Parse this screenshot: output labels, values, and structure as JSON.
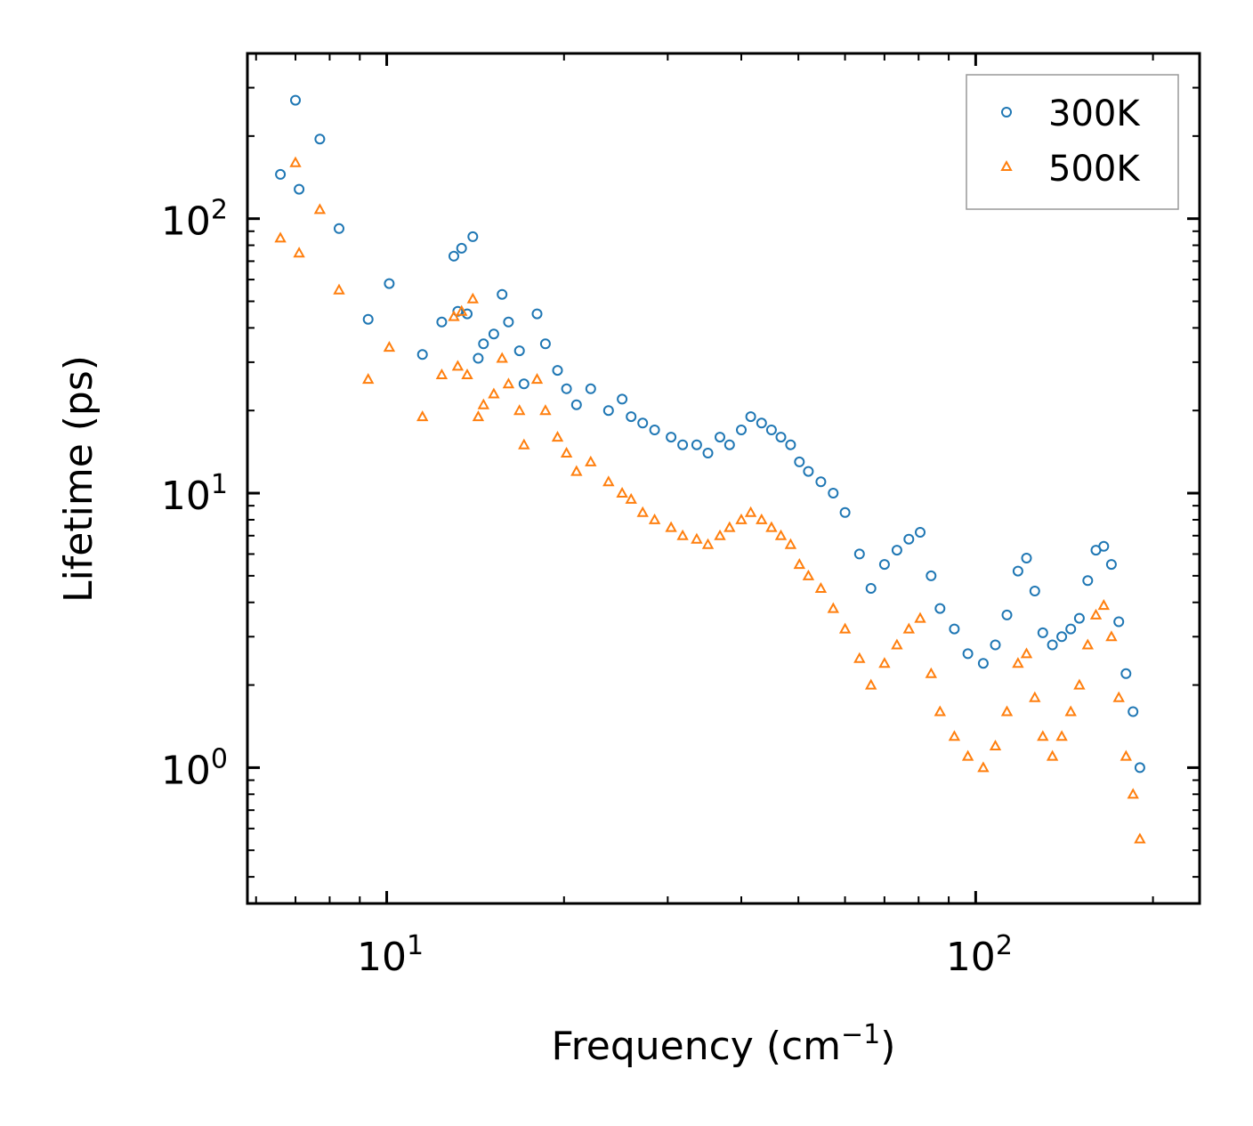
{
  "chart_data": {
    "type": "scatter",
    "title": "",
    "xlabel": "Frequency (cm",
    "xlabel_superscript": "−1",
    "xlabel_suffix": ")",
    "ylabel": "Lifetime (ps)",
    "xscale": "log",
    "yscale": "log",
    "xlim": [
      5.8,
      240
    ],
    "ylim": [
      0.32,
      400
    ],
    "x_ticks": [
      {
        "value": 10,
        "base": "10",
        "exp": "1"
      },
      {
        "value": 100,
        "base": "10",
        "exp": "2"
      }
    ],
    "y_ticks": [
      {
        "value": 1,
        "base": "10",
        "exp": "0"
      },
      {
        "value": 10,
        "base": "10",
        "exp": "1"
      },
      {
        "value": 100,
        "base": "10",
        "exp": "2"
      }
    ],
    "legend_position": "top-right",
    "series": [
      {
        "name": "300K",
        "marker": "circle",
        "color": "#1f77b4",
        "x": [
          6.6,
          7.0,
          7.1,
          7.7,
          8.3,
          9.3,
          10.1,
          11.5,
          12.4,
          13.0,
          13.2,
          13.4,
          13.7,
          14.0,
          14.3,
          14.6,
          15.2,
          15.7,
          16.1,
          16.8,
          17.1,
          18.0,
          18.6,
          19.5,
          20.2,
          21.0,
          22.2,
          23.8,
          25.1,
          26.0,
          27.2,
          28.5,
          30.4,
          31.8,
          33.6,
          35.1,
          36.8,
          38.2,
          40.0,
          41.5,
          43.3,
          45.0,
          46.7,
          48.5,
          50.2,
          52.0,
          54.6,
          57.3,
          60.0,
          63.5,
          66.4,
          70.0,
          73.5,
          77.0,
          80.5,
          84.0,
          87.0,
          92.0,
          97.0,
          103.0,
          108.0,
          113.0,
          118.0,
          122.0,
          126.0,
          130.0,
          135.0,
          140.0,
          145.0,
          150.0,
          155.0,
          160.0,
          165.0,
          170.0,
          175.0,
          180.0,
          185.0,
          190.0
        ],
        "y": [
          145,
          270,
          128,
          195,
          92,
          43,
          58,
          32,
          42,
          73,
          46,
          78,
          45,
          86,
          31,
          35,
          38,
          53,
          42,
          33,
          25,
          45,
          35,
          28,
          24,
          21,
          24,
          20,
          22,
          19,
          18,
          17,
          16,
          15,
          15,
          14,
          16,
          15,
          17,
          19,
          18,
          17,
          16,
          15,
          13,
          12,
          11,
          10,
          8.5,
          6.0,
          4.5,
          5.5,
          6.2,
          6.8,
          7.2,
          5.0,
          3.8,
          3.2,
          2.6,
          2.4,
          2.8,
          3.6,
          5.2,
          5.8,
          4.4,
          3.1,
          2.8,
          3.0,
          3.2,
          3.5,
          4.8,
          6.2,
          6.4,
          5.5,
          3.4,
          2.2,
          1.6,
          1.0
        ]
      },
      {
        "name": "500K",
        "marker": "triangle",
        "color": "#ff7f0e",
        "x": [
          6.6,
          7.0,
          7.1,
          7.7,
          8.3,
          9.3,
          10.1,
          11.5,
          12.4,
          13.0,
          13.2,
          13.4,
          13.7,
          14.0,
          14.3,
          14.6,
          15.2,
          15.7,
          16.1,
          16.8,
          17.1,
          18.0,
          18.6,
          19.5,
          20.2,
          21.0,
          22.2,
          23.8,
          25.1,
          26.0,
          27.2,
          28.5,
          30.4,
          31.8,
          33.6,
          35.1,
          36.8,
          38.2,
          40.0,
          41.5,
          43.3,
          45.0,
          46.7,
          48.5,
          50.2,
          52.0,
          54.6,
          57.3,
          60.0,
          63.5,
          66.4,
          70.0,
          73.5,
          77.0,
          80.5,
          84.0,
          87.0,
          92.0,
          97.0,
          103.0,
          108.0,
          113.0,
          118.0,
          122.0,
          126.0,
          130.0,
          135.0,
          140.0,
          145.0,
          150.0,
          155.0,
          160.0,
          165.0,
          170.0,
          175.0,
          180.0,
          185.0,
          190.0
        ],
        "y": [
          85,
          160,
          75,
          108,
          55,
          26,
          34,
          19,
          27,
          44,
          29,
          46,
          27,
          51,
          19,
          21,
          23,
          31,
          25,
          20,
          15,
          26,
          20,
          16,
          14,
          12,
          13,
          11,
          10,
          9.5,
          8.5,
          8.0,
          7.5,
          7.0,
          6.8,
          6.5,
          7.0,
          7.5,
          8.0,
          8.5,
          8.0,
          7.5,
          7.0,
          6.5,
          5.5,
          5.0,
          4.5,
          3.8,
          3.2,
          2.5,
          2.0,
          2.4,
          2.8,
          3.2,
          3.5,
          2.2,
          1.6,
          1.3,
          1.1,
          1.0,
          1.2,
          1.6,
          2.4,
          2.6,
          1.8,
          1.3,
          1.1,
          1.3,
          1.6,
          2.0,
          2.8,
          3.6,
          3.9,
          3.0,
          1.8,
          1.1,
          0.8,
          0.55
        ]
      }
    ]
  }
}
